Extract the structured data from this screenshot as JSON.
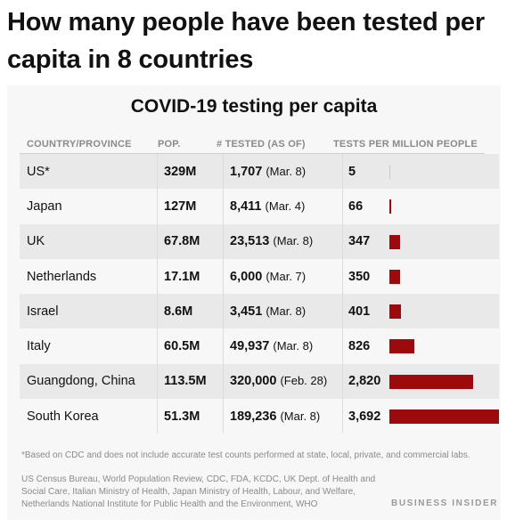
{
  "headline": "How many people have been tested per capita in 8 countries",
  "card": {
    "title": "COVID-19 testing per capita",
    "headers": {
      "country": "COUNTRY/PROVINCE",
      "pop": "POP.",
      "tested": "# TESTED (AS OF)",
      "rate": "TESTS PER MILLION PEOPLE"
    },
    "rows": [
      {
        "country": "US*",
        "pop": "329M",
        "tested": "1,707",
        "date": "(Mar. 8)",
        "rate": "5",
        "rate_value": 5
      },
      {
        "country": "Japan",
        "pop": "127M",
        "tested": "8,411",
        "date": "(Mar. 4)",
        "rate": "66",
        "rate_value": 66
      },
      {
        "country": "UK",
        "pop": "67.8M",
        "tested": "23,513",
        "date": "(Mar. 8)",
        "rate": "347",
        "rate_value": 347
      },
      {
        "country": "Netherlands",
        "pop": "17.1M",
        "tested": "6,000",
        "date": "(Mar. 7)",
        "rate": "350",
        "rate_value": 350
      },
      {
        "country": "Israel",
        "pop": "8.6M",
        "tested": "3,451",
        "date": "(Mar. 8)",
        "rate": "401",
        "rate_value": 401
      },
      {
        "country": "Italy",
        "pop": "60.5M",
        "tested": "49,937",
        "date": "(Mar. 8)",
        "rate": "826",
        "rate_value": 826
      },
      {
        "country": "Guangdong, China",
        "pop": "113.5M",
        "tested": "320,000",
        "date": "(Feb. 28)",
        "rate": "2,820",
        "rate_value": 2820
      },
      {
        "country": "South Korea",
        "pop": "51.3M",
        "tested": "189,236",
        "date": "(Mar. 8)",
        "rate": "3,692",
        "rate_value": 3692
      }
    ],
    "bar_color": "#9d0a0e",
    "footnote": "*Based on CDC and does not include accurate test counts performed at state, local, private, and commercial labs.",
    "sources": "US Census Bureau, World Population Review, CDC, FDA, KCDC, UK Dept. of Health and Social Care, Italian Ministry of Health, Japan Ministry of Health, Labour, and Welfare, Netherlands National Institute for Public Health and the Environment, WHO",
    "publisher": "BUSINESS INSIDER"
  }
}
